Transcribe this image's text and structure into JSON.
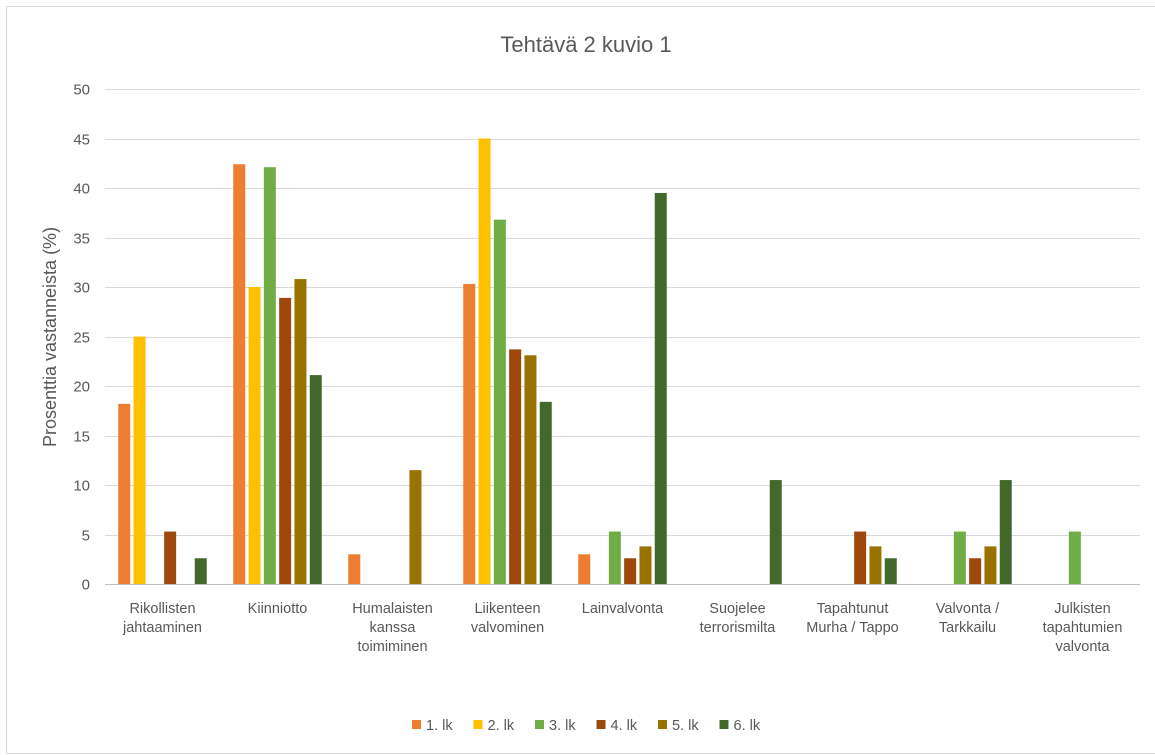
{
  "chart_data": {
    "type": "bar",
    "title": "Tehtävä 2 kuvio 1",
    "xlabel": "",
    "ylabel": "Prosenttia vastanneista (%)",
    "ylim": [
      0,
      50
    ],
    "yticks": [
      0,
      5,
      10,
      15,
      20,
      25,
      30,
      35,
      40,
      45,
      50
    ],
    "grid": true,
    "legend_position": "bottom",
    "categories": [
      [
        "Rikollisten",
        "jahtaaminen"
      ],
      [
        "Kiinniotto"
      ],
      [
        "Humalaisten",
        "kanssa",
        "toimiminen"
      ],
      [
        "Liikenteen",
        "valvominen"
      ],
      [
        "Lainvalvonta"
      ],
      [
        "Suojelee",
        "terrorismilta"
      ],
      [
        "Tapahtunut",
        "Murha / Tappo"
      ],
      [
        "Valvonta /",
        "Tarkkailu"
      ],
      [
        "Julkisten",
        "tapahtumien",
        "valvonta"
      ]
    ],
    "series": [
      {
        "name": "1. lk",
        "color": "#ED7D31",
        "values": [
          18.2,
          42.4,
          3.0,
          30.3,
          3.0,
          0,
          0,
          0,
          0
        ]
      },
      {
        "name": "2. lk",
        "color": "#FFC000",
        "values": [
          25.0,
          30.0,
          0,
          45.0,
          0,
          0,
          0,
          0,
          0
        ]
      },
      {
        "name": "3. lk",
        "color": "#70AD47",
        "values": [
          0,
          42.1,
          0,
          36.8,
          5.3,
          0,
          0,
          5.3,
          5.3
        ]
      },
      {
        "name": "4. lk",
        "color": "#9E480E",
        "values": [
          5.3,
          28.9,
          0,
          23.7,
          2.6,
          0,
          5.3,
          2.6,
          0
        ]
      },
      {
        "name": "5. lk",
        "color": "#997300",
        "values": [
          0,
          30.8,
          11.5,
          23.1,
          3.8,
          0,
          3.8,
          3.8,
          0
        ]
      },
      {
        "name": "6. lk",
        "color": "#43682B",
        "values": [
          2.6,
          21.1,
          0,
          18.4,
          39.5,
          10.5,
          2.6,
          10.5,
          0
        ]
      }
    ]
  }
}
